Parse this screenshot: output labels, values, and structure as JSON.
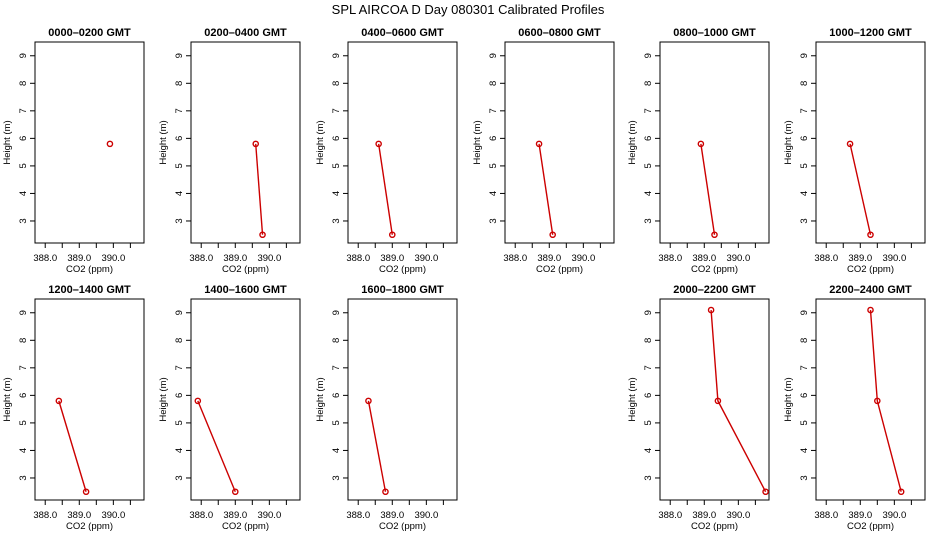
{
  "figure": {
    "title": "SPL AIRCOA D  Day 080301  Calibrated Profiles",
    "line_color": "#cc0000",
    "point_color": "#cc0000"
  },
  "chart_data": [
    {
      "type": "line",
      "title": "0000–0200 GMT",
      "xlabel": "CO2 (ppm)",
      "ylabel": "Height (m)",
      "xlim": [
        387.7,
        390.9
      ],
      "ylim": [
        2.2,
        9.5
      ],
      "xticks": [
        "388.0",
        "389.0",
        "390.0"
      ],
      "yticks": [
        "3",
        "4",
        "5",
        "6",
        "7",
        "8",
        "9"
      ],
      "points": [
        {
          "x": 389.9,
          "y": 5.8
        }
      ]
    },
    {
      "type": "line",
      "title": "0200–0400 GMT",
      "xlabel": "CO2 (ppm)",
      "ylabel": "Height (m)",
      "xlim": [
        387.7,
        390.9
      ],
      "ylim": [
        2.2,
        9.5
      ],
      "xticks": [
        "388.0",
        "389.0",
        "390.0"
      ],
      "yticks": [
        "3",
        "4",
        "5",
        "6",
        "7",
        "8",
        "9"
      ],
      "points": [
        {
          "x": 389.6,
          "y": 5.8
        },
        {
          "x": 389.8,
          "y": 2.5
        }
      ]
    },
    {
      "type": "line",
      "title": "0400–0600 GMT",
      "xlabel": "CO2 (ppm)",
      "ylabel": "Height (m)",
      "xlim": [
        387.7,
        390.9
      ],
      "ylim": [
        2.2,
        9.5
      ],
      "xticks": [
        "388.0",
        "389.0",
        "390.0"
      ],
      "yticks": [
        "3",
        "4",
        "5",
        "6",
        "7",
        "8",
        "9"
      ],
      "points": [
        {
          "x": 388.6,
          "y": 5.8
        },
        {
          "x": 389.0,
          "y": 2.5
        }
      ]
    },
    {
      "type": "line",
      "title": "0600–0800 GMT",
      "xlabel": "CO2 (ppm)",
      "ylabel": "Height (m)",
      "xlim": [
        387.7,
        390.9
      ],
      "ylim": [
        2.2,
        9.5
      ],
      "xticks": [
        "388.0",
        "389.0",
        "390.0"
      ],
      "yticks": [
        "3",
        "4",
        "5",
        "6",
        "7",
        "8",
        "9"
      ],
      "points": [
        {
          "x": 388.7,
          "y": 5.8
        },
        {
          "x": 389.1,
          "y": 2.5
        }
      ]
    },
    {
      "type": "line",
      "title": "0800–1000 GMT",
      "xlabel": "CO2 (ppm)",
      "ylabel": "Height (m)",
      "xlim": [
        387.7,
        390.9
      ],
      "ylim": [
        2.2,
        9.5
      ],
      "xticks": [
        "388.0",
        "389.0",
        "390.0"
      ],
      "yticks": [
        "3",
        "4",
        "5",
        "6",
        "7",
        "8",
        "9"
      ],
      "points": [
        {
          "x": 388.9,
          "y": 5.8
        },
        {
          "x": 389.3,
          "y": 2.5
        }
      ]
    },
    {
      "type": "line",
      "title": "1000–1200 GMT",
      "xlabel": "CO2 (ppm)",
      "ylabel": "Height (m)",
      "xlim": [
        387.7,
        390.9
      ],
      "ylim": [
        2.2,
        9.5
      ],
      "xticks": [
        "388.0",
        "389.0",
        "390.0"
      ],
      "yticks": [
        "3",
        "4",
        "5",
        "6",
        "7",
        "8",
        "9"
      ],
      "points": [
        {
          "x": 388.7,
          "y": 5.8
        },
        {
          "x": 389.3,
          "y": 2.5
        }
      ]
    },
    {
      "type": "line",
      "title": "1200–1400 GMT",
      "xlabel": "CO2 (ppm)",
      "ylabel": "Height (m)",
      "xlim": [
        387.7,
        390.9
      ],
      "ylim": [
        2.2,
        9.5
      ],
      "xticks": [
        "388.0",
        "389.0",
        "390.0"
      ],
      "yticks": [
        "3",
        "4",
        "5",
        "6",
        "7",
        "8",
        "9"
      ],
      "points": [
        {
          "x": 388.4,
          "y": 5.8
        },
        {
          "x": 389.2,
          "y": 2.5
        }
      ]
    },
    {
      "type": "line",
      "title": "1400–1600 GMT",
      "xlabel": "CO2 (ppm)",
      "ylabel": "Height (m)",
      "xlim": [
        387.7,
        390.9
      ],
      "ylim": [
        2.2,
        9.5
      ],
      "xticks": [
        "388.0",
        "389.0",
        "390.0"
      ],
      "yticks": [
        "3",
        "4",
        "5",
        "6",
        "7",
        "8",
        "9"
      ],
      "points": [
        {
          "x": 387.9,
          "y": 5.8
        },
        {
          "x": 389.0,
          "y": 2.5
        }
      ]
    },
    {
      "type": "line",
      "title": "1600–1800 GMT",
      "xlabel": "CO2 (ppm)",
      "ylabel": "Height (m)",
      "xlim": [
        387.7,
        390.9
      ],
      "ylim": [
        2.2,
        9.5
      ],
      "xticks": [
        "388.0",
        "389.0",
        "390.0"
      ],
      "yticks": [
        "3",
        "4",
        "5",
        "6",
        "7",
        "8",
        "9"
      ],
      "points": [
        {
          "x": 388.3,
          "y": 5.8
        },
        {
          "x": 388.8,
          "y": 2.5
        }
      ]
    },
    {
      "type": "line",
      "title": "2000–2200 GMT",
      "xlabel": "CO2 (ppm)",
      "ylabel": "Height (m)",
      "xlim": [
        387.7,
        390.9
      ],
      "ylim": [
        2.2,
        9.5
      ],
      "xticks": [
        "388.0",
        "389.0",
        "390.0"
      ],
      "yticks": [
        "3",
        "4",
        "5",
        "6",
        "7",
        "8",
        "9"
      ],
      "points": [
        {
          "x": 389.2,
          "y": 9.1
        },
        {
          "x": 389.4,
          "y": 5.8
        },
        {
          "x": 390.8,
          "y": 2.5
        }
      ]
    },
    {
      "type": "line",
      "title": "2200–2400 GMT",
      "xlabel": "CO2 (ppm)",
      "ylabel": "Height (m)",
      "xlim": [
        387.7,
        390.9
      ],
      "ylim": [
        2.2,
        9.5
      ],
      "xticks": [
        "388.0",
        "389.0",
        "390.0"
      ],
      "yticks": [
        "3",
        "4",
        "5",
        "6",
        "7",
        "8",
        "9"
      ],
      "points": [
        {
          "x": 389.3,
          "y": 9.1
        },
        {
          "x": 389.5,
          "y": 5.8
        },
        {
          "x": 390.2,
          "y": 2.5
        }
      ]
    }
  ]
}
